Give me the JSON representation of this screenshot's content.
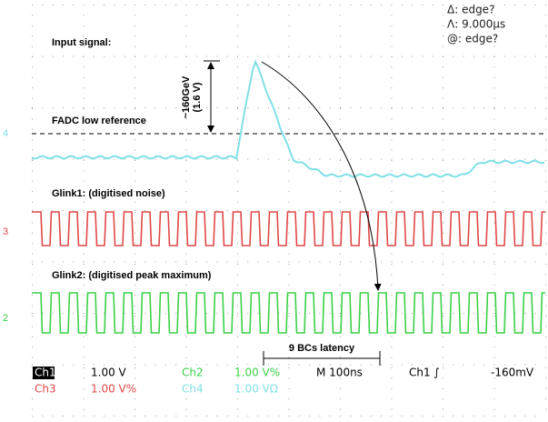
{
  "annotations": {
    "input_signal": "Input signal:",
    "amplitude": "~160GeV",
    "amplitude_volts": "(1.6 V)",
    "fadc_reference": "FADC low reference",
    "glink1": "Glink1: (digitised noise)",
    "glink2": "Glink2: (digitised peak maximum)",
    "latency": "9 BCs latency"
  },
  "channel_markers": [
    "4",
    "3",
    "2"
  ],
  "cursor_readout": [
    "Δ: edge?",
    "Λ: 9.000µs",
    "@: edge?"
  ],
  "status": {
    "row1": [
      "Ch1",
      "1.00 V",
      "Ch2",
      "1.00 V%",
      "M 100ns",
      "Ch1 ∫",
      "-160mV"
    ],
    "row2": [
      "Ch3",
      "1.00 V%",
      "Ch4",
      "1.00 VΩ"
    ]
  }
}
